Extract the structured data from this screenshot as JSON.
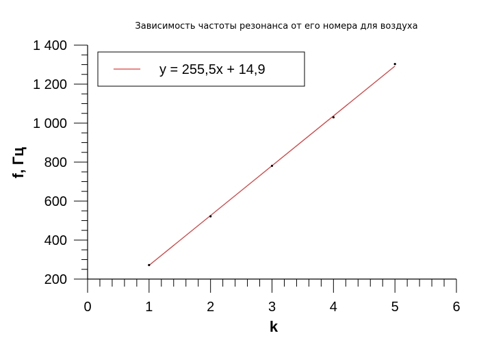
{
  "chart_data": {
    "type": "scatter",
    "title": "Зависимость частоты резонанса от его номера для воздуха",
    "xlabel": "k",
    "ylabel": "f, Гц",
    "xlim": [
      0,
      6
    ],
    "ylim": [
      200,
      1400
    ],
    "x_ticks": [
      0,
      1,
      2,
      3,
      4,
      5,
      6
    ],
    "y_ticks": [
      200,
      400,
      600,
      800,
      1000,
      1200,
      1400
    ],
    "y_tick_labels": [
      "200",
      "400",
      "600",
      "800",
      "1 000",
      "1 200",
      "1 400"
    ],
    "grid": false,
    "legend_position": "top-left",
    "series": [
      {
        "x": [
          1,
          2,
          3,
          4,
          5
        ],
        "y": [
          272,
          522,
          781,
          1030,
          1303
        ],
        "color": "#000000"
      }
    ],
    "trendline": {
      "name": "y = 255,5x + 14,9",
      "slope": 255.5,
      "intercept": 14.9,
      "x_range": [
        1,
        5
      ],
      "color": "#ff0000"
    }
  }
}
